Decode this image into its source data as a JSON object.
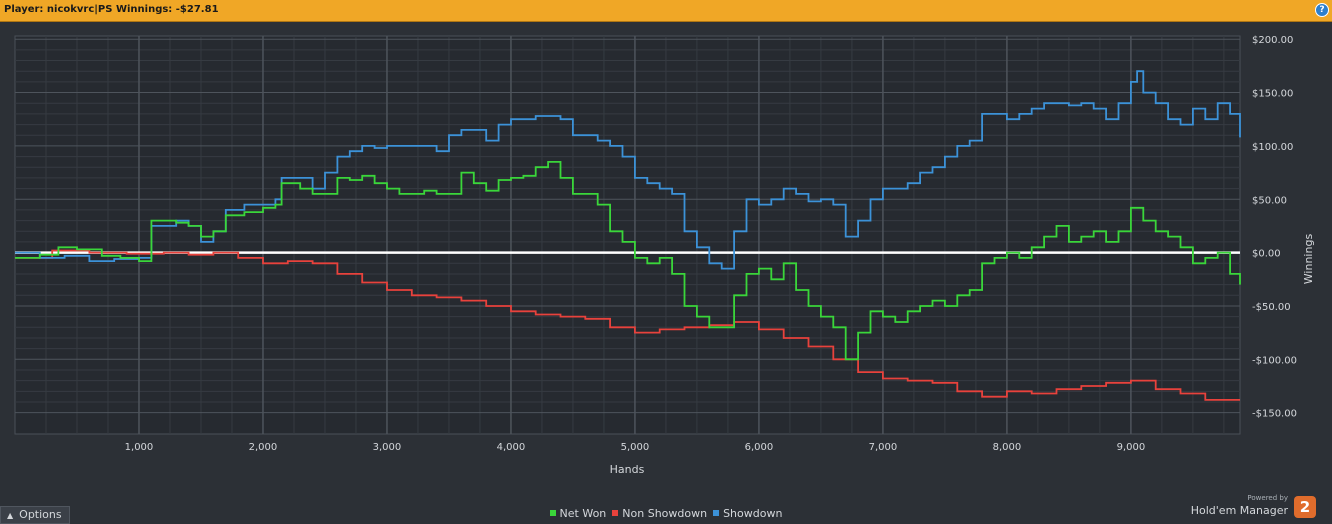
{
  "header": {
    "title": "Player: nicokvrc|PS  Winnings: -$27.81",
    "help_icon": "question-mark-icon"
  },
  "legend": [
    {
      "label": "Net Won",
      "color": "#3ad63a"
    },
    {
      "label": "Non Showdown",
      "color": "#e8423c"
    },
    {
      "label": "Showdown",
      "color": "#3c92d8"
    }
  ],
  "footer": {
    "options_label": "Options",
    "options_icon": "caret-up-icon",
    "powered_by": "Powered by",
    "brand": "Hold'em Manager",
    "brand_logo": "2"
  },
  "chart_data": {
    "type": "line",
    "xlabel": "Hands",
    "ylabel": "Winnings",
    "xlim": [
      0,
      9880
    ],
    "ylim": [
      -170,
      203
    ],
    "x_ticks": [
      1000,
      2000,
      3000,
      4000,
      5000,
      6000,
      7000,
      8000,
      9000
    ],
    "x_tick_labels": [
      "1,000",
      "2,000",
      "3,000",
      "4,000",
      "5,000",
      "6,000",
      "7,000",
      "8,000",
      "9,000"
    ],
    "y_ticks": [
      200,
      150,
      100,
      50,
      0,
      -50,
      -100,
      -150
    ],
    "y_tick_labels": [
      "$200.00",
      "$150.00",
      "$100.00",
      "$50.00",
      "$0.00",
      "-$50.00",
      "-$100.00",
      "-$150.00"
    ],
    "grid": true,
    "zero_line": true,
    "legend_position": "bottom-center",
    "series": [
      {
        "name": "Net Won",
        "color": "#3ad63a",
        "points": [
          [
            0,
            -5
          ],
          [
            200,
            -2
          ],
          [
            350,
            5
          ],
          [
            500,
            3
          ],
          [
            700,
            -3
          ],
          [
            850,
            -5
          ],
          [
            1000,
            -8
          ],
          [
            1100,
            30
          ],
          [
            1300,
            28
          ],
          [
            1400,
            25
          ],
          [
            1500,
            15
          ],
          [
            1600,
            20
          ],
          [
            1700,
            35
          ],
          [
            1850,
            38
          ],
          [
            2000,
            42
          ],
          [
            2100,
            45
          ],
          [
            2150,
            65
          ],
          [
            2300,
            60
          ],
          [
            2400,
            55
          ],
          [
            2500,
            55
          ],
          [
            2600,
            70
          ],
          [
            2700,
            68
          ],
          [
            2800,
            72
          ],
          [
            2900,
            65
          ],
          [
            3000,
            60
          ],
          [
            3100,
            55
          ],
          [
            3300,
            58
          ],
          [
            3400,
            55
          ],
          [
            3500,
            55
          ],
          [
            3600,
            75
          ],
          [
            3700,
            65
          ],
          [
            3800,
            58
          ],
          [
            3900,
            68
          ],
          [
            4000,
            70
          ],
          [
            4100,
            72
          ],
          [
            4200,
            80
          ],
          [
            4300,
            85
          ],
          [
            4400,
            70
          ],
          [
            4500,
            55
          ],
          [
            4600,
            55
          ],
          [
            4700,
            45
          ],
          [
            4800,
            20
          ],
          [
            4900,
            10
          ],
          [
            5000,
            -5
          ],
          [
            5100,
            -10
          ],
          [
            5200,
            -5
          ],
          [
            5300,
            -20
          ],
          [
            5400,
            -50
          ],
          [
            5500,
            -60
          ],
          [
            5600,
            -70
          ],
          [
            5700,
            -70
          ],
          [
            5800,
            -40
          ],
          [
            5900,
            -20
          ],
          [
            6000,
            -15
          ],
          [
            6100,
            -25
          ],
          [
            6200,
            -10
          ],
          [
            6300,
            -35
          ],
          [
            6400,
            -50
          ],
          [
            6500,
            -60
          ],
          [
            6600,
            -70
          ],
          [
            6700,
            -100
          ],
          [
            6800,
            -75
          ],
          [
            6900,
            -55
          ],
          [
            7000,
            -60
          ],
          [
            7100,
            -65
          ],
          [
            7200,
            -55
          ],
          [
            7300,
            -50
          ],
          [
            7400,
            -45
          ],
          [
            7500,
            -50
          ],
          [
            7600,
            -40
          ],
          [
            7700,
            -35
          ],
          [
            7800,
            -10
          ],
          [
            7900,
            -5
          ],
          [
            8000,
            0
          ],
          [
            8100,
            -5
          ],
          [
            8200,
            5
          ],
          [
            8300,
            15
          ],
          [
            8400,
            25
          ],
          [
            8500,
            10
          ],
          [
            8600,
            15
          ],
          [
            8700,
            20
          ],
          [
            8800,
            10
          ],
          [
            8900,
            20
          ],
          [
            9000,
            42
          ],
          [
            9100,
            30
          ],
          [
            9200,
            20
          ],
          [
            9300,
            15
          ],
          [
            9400,
            5
          ],
          [
            9500,
            -10
          ],
          [
            9600,
            -5
          ],
          [
            9700,
            0
          ],
          [
            9800,
            -20
          ],
          [
            9880,
            -30
          ]
        ]
      },
      {
        "name": "Non Showdown",
        "color": "#e8423c",
        "points": [
          [
            0,
            -5
          ],
          [
            300,
            2
          ],
          [
            600,
            0
          ],
          [
            900,
            -1
          ],
          [
            1200,
            0
          ],
          [
            1400,
            -2
          ],
          [
            1600,
            0
          ],
          [
            1800,
            -5
          ],
          [
            2000,
            -10
          ],
          [
            2200,
            -8
          ],
          [
            2400,
            -10
          ],
          [
            2600,
            -20
          ],
          [
            2800,
            -28
          ],
          [
            3000,
            -35
          ],
          [
            3200,
            -40
          ],
          [
            3400,
            -42
          ],
          [
            3600,
            -45
          ],
          [
            3800,
            -50
          ],
          [
            4000,
            -55
          ],
          [
            4200,
            -58
          ],
          [
            4400,
            -60
          ],
          [
            4600,
            -62
          ],
          [
            4800,
            -70
          ],
          [
            5000,
            -75
          ],
          [
            5200,
            -72
          ],
          [
            5400,
            -70
          ],
          [
            5600,
            -68
          ],
          [
            5800,
            -65
          ],
          [
            6000,
            -72
          ],
          [
            6200,
            -80
          ],
          [
            6400,
            -88
          ],
          [
            6600,
            -100
          ],
          [
            6800,
            -112
          ],
          [
            7000,
            -118
          ],
          [
            7200,
            -120
          ],
          [
            7400,
            -122
          ],
          [
            7600,
            -130
          ],
          [
            7800,
            -135
          ],
          [
            8000,
            -130
          ],
          [
            8200,
            -132
          ],
          [
            8400,
            -128
          ],
          [
            8600,
            -125
          ],
          [
            8800,
            -122
          ],
          [
            9000,
            -120
          ],
          [
            9200,
            -128
          ],
          [
            9400,
            -132
          ],
          [
            9600,
            -138
          ],
          [
            9880,
            -138
          ]
        ]
      },
      {
        "name": "Showdown",
        "color": "#3c92d8",
        "points": [
          [
            0,
            0
          ],
          [
            200,
            -5
          ],
          [
            400,
            -3
          ],
          [
            600,
            -8
          ],
          [
            800,
            -6
          ],
          [
            1000,
            -5
          ],
          [
            1100,
            25
          ],
          [
            1300,
            30
          ],
          [
            1400,
            25
          ],
          [
            1500,
            10
          ],
          [
            1600,
            20
          ],
          [
            1700,
            40
          ],
          [
            1850,
            45
          ],
          [
            2000,
            45
          ],
          [
            2100,
            50
          ],
          [
            2150,
            70
          ],
          [
            2300,
            70
          ],
          [
            2400,
            60
          ],
          [
            2500,
            75
          ],
          [
            2600,
            90
          ],
          [
            2700,
            95
          ],
          [
            2800,
            100
          ],
          [
            2900,
            98
          ],
          [
            3000,
            100
          ],
          [
            3200,
            100
          ],
          [
            3400,
            95
          ],
          [
            3500,
            110
          ],
          [
            3600,
            115
          ],
          [
            3700,
            115
          ],
          [
            3800,
            105
          ],
          [
            3900,
            120
          ],
          [
            4000,
            125
          ],
          [
            4200,
            128
          ],
          [
            4400,
            125
          ],
          [
            4500,
            110
          ],
          [
            4600,
            110
          ],
          [
            4700,
            105
          ],
          [
            4800,
            100
          ],
          [
            4900,
            90
          ],
          [
            5000,
            70
          ],
          [
            5100,
            65
          ],
          [
            5200,
            60
          ],
          [
            5300,
            55
          ],
          [
            5400,
            20
          ],
          [
            5500,
            5
          ],
          [
            5600,
            -10
          ],
          [
            5700,
            -15
          ],
          [
            5800,
            20
          ],
          [
            5900,
            50
          ],
          [
            6000,
            45
          ],
          [
            6100,
            50
          ],
          [
            6200,
            60
          ],
          [
            6300,
            55
          ],
          [
            6400,
            48
          ],
          [
            6500,
            50
          ],
          [
            6600,
            45
          ],
          [
            6700,
            15
          ],
          [
            6800,
            30
          ],
          [
            6900,
            50
          ],
          [
            7000,
            60
          ],
          [
            7100,
            60
          ],
          [
            7200,
            65
          ],
          [
            7300,
            75
          ],
          [
            7400,
            80
          ],
          [
            7500,
            90
          ],
          [
            7600,
            100
          ],
          [
            7700,
            105
          ],
          [
            7800,
            130
          ],
          [
            7900,
            130
          ],
          [
            8000,
            125
          ],
          [
            8100,
            130
          ],
          [
            8200,
            135
          ],
          [
            8300,
            140
          ],
          [
            8400,
            140
          ],
          [
            8500,
            138
          ],
          [
            8600,
            140
          ],
          [
            8700,
            135
          ],
          [
            8800,
            125
          ],
          [
            8900,
            140
          ],
          [
            9000,
            160
          ],
          [
            9050,
            170
          ],
          [
            9100,
            150
          ],
          [
            9200,
            140
          ],
          [
            9300,
            125
          ],
          [
            9400,
            120
          ],
          [
            9500,
            135
          ],
          [
            9600,
            125
          ],
          [
            9700,
            140
          ],
          [
            9800,
            130
          ],
          [
            9880,
            108
          ]
        ]
      }
    ]
  }
}
